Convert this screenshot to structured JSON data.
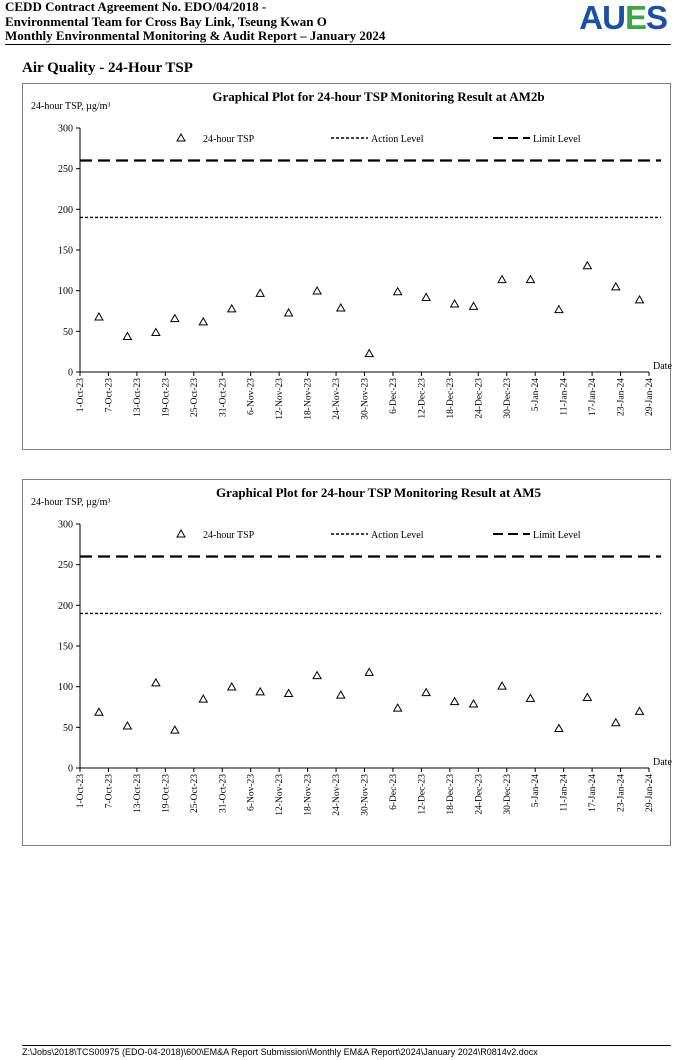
{
  "header": {
    "line1": "CEDD Contract Agreement No. EDO/04/2018 -",
    "line2": "Environmental Team for Cross Bay Link, Tseung Kwan O",
    "line3": "Monthly Environmental Monitoring & Audit Report – January 2024",
    "logo_part1": "AU",
    "logo_part2": "E",
    "logo_part3": "S",
    "logo_color_blue": "#1d4fa3",
    "logo_color_green": "#3aa648"
  },
  "section_title": "Air Quality - 24-Hour TSP",
  "footer": {
    "path": "Z:\\Jobs\\2018\\TCS00975 (EDO-04-2018)\\600\\EM&A Report Submission\\Monthly EM&A Report\\2024\\January 2024\\R0814v2.docx"
  },
  "chart_data": [
    {
      "type": "scatter",
      "title": "Graphical Plot for 24-hour TSP Monitoring Result at AM2b",
      "ylabel": "24-hour TSP, µg/m³",
      "xlabel": "Date",
      "ylim": [
        0,
        300
      ],
      "yticks": [
        0,
        50,
        100,
        150,
        200,
        250,
        300
      ],
      "xlim": [
        "2023-10-01",
        "2024-01-29"
      ],
      "xticks": [
        "1-Oct-23",
        "7-Oct-23",
        "13-Oct-23",
        "19-Oct-23",
        "25-Oct-23",
        "31-Oct-23",
        "6-Nov-23",
        "12-Nov-23",
        "18-Nov-23",
        "24-Nov-23",
        "30-Nov-23",
        "6-Dec-23",
        "12-Dec-23",
        "18-Dec-23",
        "24-Dec-23",
        "30-Dec-23",
        "5-Jan-24",
        "11-Jan-24",
        "17-Jan-24",
        "23-Jan-24",
        "29-Jan-24"
      ],
      "grid": false,
      "legend_placement": "top",
      "series": [
        {
          "name": "24-hour TSP",
          "marker": "triangle-open",
          "x": [
            "2023-10-05",
            "2023-10-11",
            "2023-10-17",
            "2023-10-21",
            "2023-10-27",
            "2023-11-02",
            "2023-11-08",
            "2023-11-14",
            "2023-11-20",
            "2023-11-25",
            "2023-12-01",
            "2023-12-07",
            "2023-12-13",
            "2023-12-19",
            "2023-12-23",
            "2023-12-29",
            "2024-01-04",
            "2024-01-10",
            "2024-01-16",
            "2024-01-22",
            "2024-01-27"
          ],
          "y": [
            67,
            43,
            48,
            65,
            61,
            77,
            96,
            72,
            99,
            78,
            22,
            98,
            91,
            83,
            80,
            113,
            113,
            76,
            130,
            104,
            88
          ]
        },
        {
          "name": "Action Level",
          "style": "dotted",
          "value": 190
        },
        {
          "name": "Limit Level",
          "style": "dashed",
          "value": 260
        }
      ]
    },
    {
      "type": "scatter",
      "title": "Graphical Plot for 24-hour TSP Monitoring Result at AM5",
      "ylabel": "24-hour TSP, µg/m³",
      "xlabel": "Date",
      "ylim": [
        0,
        300
      ],
      "yticks": [
        0,
        50,
        100,
        150,
        200,
        250,
        300
      ],
      "xlim": [
        "2023-10-01",
        "2024-01-29"
      ],
      "xticks": [
        "1-Oct-23",
        "7-Oct-23",
        "13-Oct-23",
        "19-Oct-23",
        "25-Oct-23",
        "31-Oct-23",
        "6-Nov-23",
        "12-Nov-23",
        "18-Nov-23",
        "24-Nov-23",
        "30-Nov-23",
        "6-Dec-23",
        "12-Dec-23",
        "18-Dec-23",
        "24-Dec-23",
        "30-Dec-23",
        "5-Jan-24",
        "11-Jan-24",
        "17-Jan-24",
        "23-Jan-24",
        "29-Jan-24"
      ],
      "grid": false,
      "legend_placement": "top",
      "series": [
        {
          "name": "24-hour TSP",
          "marker": "triangle-open",
          "x": [
            "2023-10-05",
            "2023-10-11",
            "2023-10-17",
            "2023-10-21",
            "2023-10-27",
            "2023-11-02",
            "2023-11-08",
            "2023-11-14",
            "2023-11-20",
            "2023-11-25",
            "2023-12-01",
            "2023-12-07",
            "2023-12-13",
            "2023-12-19",
            "2023-12-23",
            "2023-12-29",
            "2024-01-04",
            "2024-01-10",
            "2024-01-16",
            "2024-01-22",
            "2024-01-27"
          ],
          "y": [
            68,
            51,
            104,
            46,
            84,
            99,
            93,
            91,
            113,
            89,
            117,
            73,
            92,
            81,
            78,
            100,
            85,
            48,
            86,
            55,
            69
          ]
        },
        {
          "name": "Action Level",
          "style": "dotted",
          "value": 190
        },
        {
          "name": "Limit Level",
          "style": "dashed",
          "value": 260
        }
      ]
    }
  ]
}
